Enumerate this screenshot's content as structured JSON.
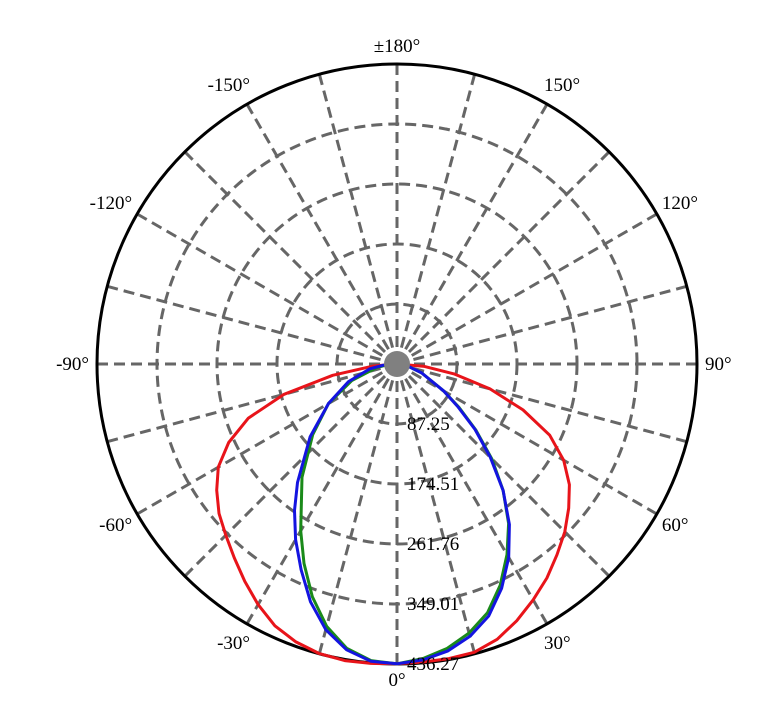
{
  "chart_data": {
    "type": "polar-line",
    "title": "",
    "radial_max": 436.27,
    "radial_ticks": [
      "87.25",
      "174.51",
      "261.76",
      "349.01",
      "436.27"
    ],
    "radial_tick_values": [
      87.25,
      174.51,
      261.76,
      349.01,
      436.27
    ],
    "angle_labels": [
      {
        "deg": 180,
        "text": "±180°"
      },
      {
        "deg": -150,
        "text": "-150°"
      },
      {
        "deg": 150,
        "text": "150°"
      },
      {
        "deg": -120,
        "text": "-120°"
      },
      {
        "deg": 120,
        "text": "120°"
      },
      {
        "deg": -90,
        "text": "-90°"
      },
      {
        "deg": 90,
        "text": "90°"
      },
      {
        "deg": -60,
        "text": "-60°"
      },
      {
        "deg": 60,
        "text": "60°"
      },
      {
        "deg": -30,
        "text": "-30°"
      },
      {
        "deg": 30,
        "text": "30°"
      },
      {
        "deg": 0,
        "text": "0°"
      }
    ],
    "grid": true,
    "series": [
      {
        "color": "#e8141a",
        "points": [
          [
            -90,
            0
          ],
          [
            -85,
            35
          ],
          [
            -80,
            95
          ],
          [
            -75,
            170
          ],
          [
            -70,
            230
          ],
          [
            -65,
            270
          ],
          [
            -60,
            300
          ],
          [
            -55,
            320
          ],
          [
            -50,
            338
          ],
          [
            -45,
            352
          ],
          [
            -40,
            368
          ],
          [
            -35,
            386
          ],
          [
            -30,
            404
          ],
          [
            -25,
            420
          ],
          [
            -20,
            430
          ],
          [
            -15,
            436
          ],
          [
            -10,
            438
          ],
          [
            -5,
            437
          ],
          [
            0,
            436
          ],
          [
            5,
            435
          ],
          [
            10,
            435
          ],
          [
            15,
            434
          ],
          [
            20,
            426
          ],
          [
            25,
            412
          ],
          [
            30,
            396
          ],
          [
            35,
            380
          ],
          [
            40,
            362
          ],
          [
            45,
            345
          ],
          [
            50,
            326
          ],
          [
            55,
            306
          ],
          [
            60,
            280
          ],
          [
            65,
            245
          ],
          [
            70,
            195
          ],
          [
            75,
            140
          ],
          [
            80,
            85
          ],
          [
            85,
            40
          ],
          [
            90,
            0
          ]
        ]
      },
      {
        "color": "#1a8a1a",
        "points": [
          [
            -90,
            0
          ],
          [
            -85,
            15
          ],
          [
            -80,
            30
          ],
          [
            -70,
            70
          ],
          [
            -60,
            115
          ],
          [
            -50,
            160
          ],
          [
            -40,
            215
          ],
          [
            -30,
            280
          ],
          [
            -25,
            320
          ],
          [
            -20,
            360
          ],
          [
            -15,
            395
          ],
          [
            -10,
            420
          ],
          [
            -5,
            433
          ],
          [
            0,
            436
          ],
          [
            5,
            430
          ],
          [
            10,
            420
          ],
          [
            15,
            405
          ],
          [
            20,
            385
          ],
          [
            25,
            355
          ],
          [
            30,
            320
          ],
          [
            35,
            283
          ],
          [
            40,
            240
          ],
          [
            45,
            195
          ],
          [
            50,
            150
          ],
          [
            55,
            110
          ],
          [
            60,
            78
          ],
          [
            70,
            38
          ],
          [
            80,
            15
          ],
          [
            90,
            0
          ]
        ]
      },
      {
        "color": "#1414e0",
        "points": [
          [
            -90,
            0
          ],
          [
            -85,
            20
          ],
          [
            -80,
            40
          ],
          [
            -70,
            75
          ],
          [
            -60,
            115
          ],
          [
            -50,
            165
          ],
          [
            -40,
            225
          ],
          [
            -35,
            260
          ],
          [
            -30,
            295
          ],
          [
            -25,
            330
          ],
          [
            -20,
            368
          ],
          [
            -15,
            400
          ],
          [
            -10,
            422
          ],
          [
            -5,
            434
          ],
          [
            0,
            436
          ],
          [
            5,
            432
          ],
          [
            10,
            424
          ],
          [
            15,
            410
          ],
          [
            20,
            390
          ],
          [
            25,
            360
          ],
          [
            30,
            325
          ],
          [
            35,
            285
          ],
          [
            40,
            240
          ],
          [
            45,
            192
          ],
          [
            50,
            148
          ],
          [
            55,
            108
          ],
          [
            60,
            78
          ],
          [
            70,
            38
          ],
          [
            80,
            15
          ],
          [
            90,
            0
          ]
        ]
      }
    ]
  }
}
